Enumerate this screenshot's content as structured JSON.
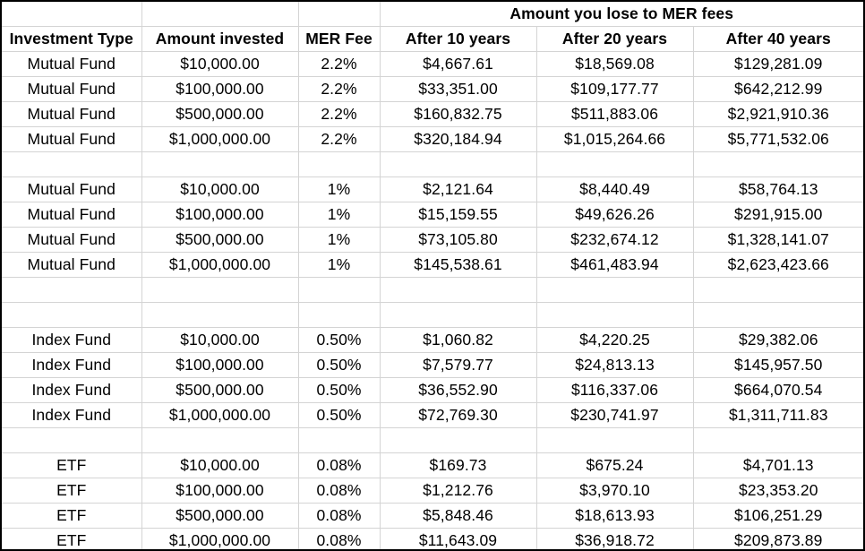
{
  "super_header": "Amount you lose to MER fees",
  "headers": [
    "Investment Type",
    "Amount invested",
    "MER Fee",
    "After 10 years",
    "After 20 years",
    "After 40 years"
  ],
  "rows": [
    {
      "type": "Mutual Fund",
      "amount": "$10,000.00",
      "mer": "2.2%",
      "y10": "$4,667.61",
      "y20": "$18,569.08",
      "y40": "$129,281.09"
    },
    {
      "type": "Mutual Fund",
      "amount": "$100,000.00",
      "mer": "2.2%",
      "y10": "$33,351.00",
      "y20": "$109,177.77",
      "y40": "$642,212.99"
    },
    {
      "type": "Mutual Fund",
      "amount": "$500,000.00",
      "mer": "2.2%",
      "y10": "$160,832.75",
      "y20": "$511,883.06",
      "y40": "$2,921,910.36"
    },
    {
      "type": "Mutual Fund",
      "amount": "$1,000,000.00",
      "mer": "2.2%",
      "y10": "$320,184.94",
      "y20": "$1,015,264.66",
      "y40": "$5,771,532.06"
    },
    null,
    {
      "type": "Mutual Fund",
      "amount": "$10,000.00",
      "mer": "1%",
      "y10": "$2,121.64",
      "y20": "$8,440.49",
      "y40": "$58,764.13"
    },
    {
      "type": "Mutual Fund",
      "amount": "$100,000.00",
      "mer": "1%",
      "y10": "$15,159.55",
      "y20": "$49,626.26",
      "y40": "$291,915.00"
    },
    {
      "type": "Mutual Fund",
      "amount": "$500,000.00",
      "mer": "1%",
      "y10": "$73,105.80",
      "y20": "$232,674.12",
      "y40": "$1,328,141.07"
    },
    {
      "type": "Mutual Fund",
      "amount": "$1,000,000.00",
      "mer": "1%",
      "y10": "$145,538.61",
      "y20": "$461,483.94",
      "y40": "$2,623,423.66"
    },
    null,
    null,
    {
      "type": "Index Fund",
      "amount": "$10,000.00",
      "mer": "0.50%",
      "y10": "$1,060.82",
      "y20": "$4,220.25",
      "y40": "$29,382.06"
    },
    {
      "type": "Index Fund",
      "amount": "$100,000.00",
      "mer": "0.50%",
      "y10": "$7,579.77",
      "y20": "$24,813.13",
      "y40": "$145,957.50"
    },
    {
      "type": "Index Fund",
      "amount": "$500,000.00",
      "mer": "0.50%",
      "y10": "$36,552.90",
      "y20": "$116,337.06",
      "y40": "$664,070.54"
    },
    {
      "type": "Index Fund",
      "amount": "$1,000,000.00",
      "mer": "0.50%",
      "y10": "$72,769.30",
      "y20": "$230,741.97",
      "y40": "$1,311,711.83"
    },
    null,
    {
      "type": "ETF",
      "amount": "$10,000.00",
      "mer": "0.08%",
      "y10": "$169.73",
      "y20": "$675.24",
      "y40": "$4,701.13"
    },
    {
      "type": "ETF",
      "amount": "$100,000.00",
      "mer": "0.08%",
      "y10": "$1,212.76",
      "y20": "$3,970.10",
      "y40": "$23,353.20"
    },
    {
      "type": "ETF",
      "amount": "$500,000.00",
      "mer": "0.08%",
      "y10": "$5,848.46",
      "y20": "$18,613.93",
      "y40": "$106,251.29"
    },
    {
      "type": "ETF",
      "amount": "$1,000,000.00",
      "mer": "0.08%",
      "y10": "$11,643.09",
      "y20": "$36,918.72",
      "y40": "$209,873.89"
    }
  ]
}
